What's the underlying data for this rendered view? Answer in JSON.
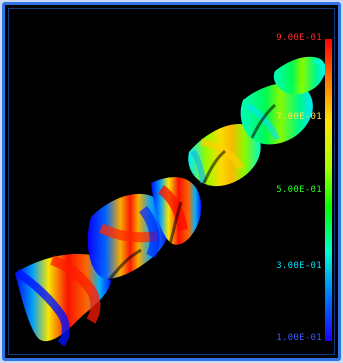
{
  "legend": {
    "ticks": [
      {
        "label": "9.00E-01",
        "color": "#ff2a2a"
      },
      {
        "label": "7.00E-01",
        "color": "#ffe34a"
      },
      {
        "label": "5.00E-01",
        "color": "#22ff22"
      },
      {
        "label": "3.00E-01",
        "color": "#00e1ff"
      },
      {
        "label": "1.00E-01",
        "color": "#3b5bff"
      }
    ]
  },
  "colors": {
    "frame_border": "#2f74e0",
    "background": "#000000"
  }
}
